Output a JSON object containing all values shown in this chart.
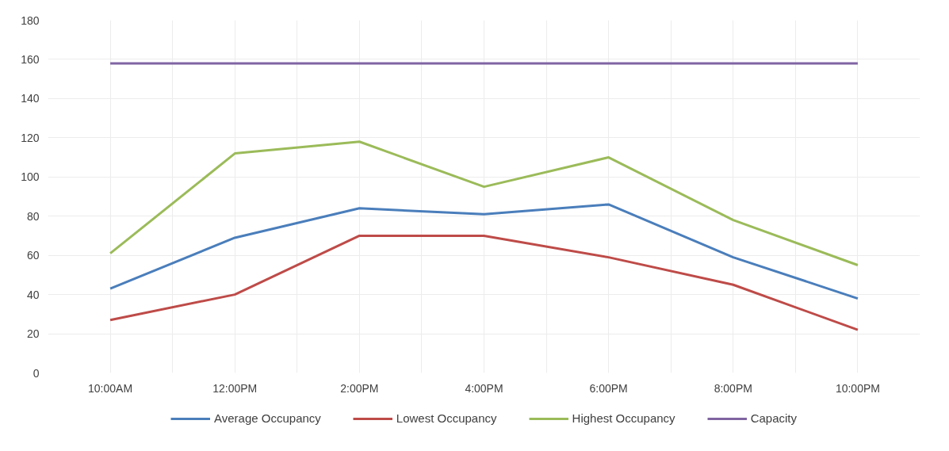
{
  "chart_data": {
    "type": "line",
    "categories": [
      "10:00AM",
      "12:00PM",
      "2:00PM",
      "4:00PM",
      "6:00PM",
      "8:00PM",
      "10:00PM"
    ],
    "series": [
      {
        "name": "Average Occupancy",
        "color": "#4a7ebb",
        "values": [
          43,
          69,
          84,
          81,
          86,
          59,
          38
        ]
      },
      {
        "name": "Lowest Occupancy",
        "color": "#be4b48",
        "values": [
          27,
          40,
          70,
          70,
          59,
          45,
          22
        ]
      },
      {
        "name": "Highest Occupancy",
        "color": "#9bbb59",
        "values": [
          61,
          112,
          118,
          95,
          110,
          78,
          55
        ]
      },
      {
        "name": "Capacity",
        "color": "#8064a2",
        "values": [
          158,
          158,
          158,
          158,
          158,
          158,
          158
        ]
      }
    ],
    "ylim": [
      0,
      180
    ],
    "yticks": [
      0,
      20,
      40,
      60,
      80,
      100,
      120,
      140,
      160,
      180
    ],
    "grid": true,
    "legend": "bottom",
    "marker": "none",
    "line_style": "solid"
  }
}
